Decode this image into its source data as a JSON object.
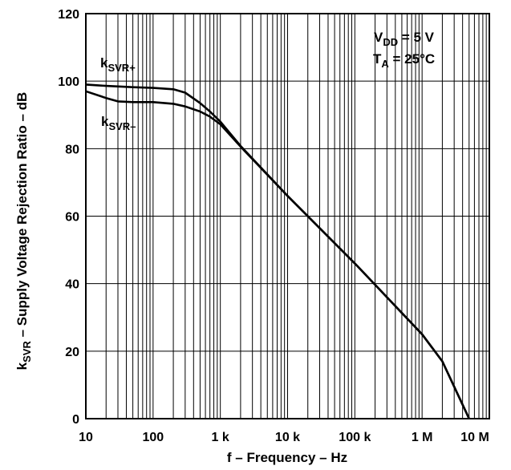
{
  "chart_data": {
    "type": "line",
    "xscale": "log",
    "xlim": [
      10,
      10000000
    ],
    "ylim": [
      0,
      120
    ],
    "grid": true,
    "xlabel": "f – Frequency – Hz",
    "ylabel": {
      "k": "k",
      "sub": "SVR",
      "rest": " – Supply Voltage Rejection Ratio – dB"
    },
    "x_ticks": [
      {
        "value": 10,
        "label": "10"
      },
      {
        "value": 100,
        "label": "100"
      },
      {
        "value": 1000,
        "label": "1 k"
      },
      {
        "value": 10000,
        "label": "10 k"
      },
      {
        "value": 100000,
        "label": "100 k"
      },
      {
        "value": 1000000,
        "label": "1 M"
      },
      {
        "value": 10000000,
        "label": "10 M"
      }
    ],
    "y_ticks": [
      {
        "value": 0,
        "label": "0"
      },
      {
        "value": 20,
        "label": "20"
      },
      {
        "value": 40,
        "label": "40"
      },
      {
        "value": 60,
        "label": "60"
      },
      {
        "value": 80,
        "label": "80"
      },
      {
        "value": 100,
        "label": "100"
      },
      {
        "value": 120,
        "label": "120"
      }
    ],
    "series": [
      {
        "name": "kSVR+",
        "label": {
          "k": "k",
          "sub": "SVR+"
        },
        "points": [
          [
            10,
            99
          ],
          [
            20,
            98.6
          ],
          [
            50,
            98.2
          ],
          [
            100,
            98
          ],
          [
            200,
            97.6
          ],
          [
            300,
            96.6
          ],
          [
            500,
            93.5
          ],
          [
            700,
            91
          ],
          [
            1000,
            88
          ],
          [
            2000,
            80.8
          ],
          [
            10000,
            66
          ],
          [
            100000,
            46
          ],
          [
            1000000,
            25
          ],
          [
            2000000,
            17
          ],
          [
            5000000,
            0
          ]
        ]
      },
      {
        "name": "kSVR-",
        "label": {
          "k": "k",
          "sub": "SVR–"
        },
        "points": [
          [
            10,
            97
          ],
          [
            20,
            95
          ],
          [
            30,
            94
          ],
          [
            50,
            93.8
          ],
          [
            100,
            93.8
          ],
          [
            200,
            93.3
          ],
          [
            300,
            92.5
          ],
          [
            500,
            91
          ],
          [
            700,
            89.5
          ],
          [
            1000,
            87.2
          ],
          [
            2000,
            80.6
          ],
          [
            10000,
            66
          ],
          [
            100000,
            46
          ],
          [
            1000000,
            25
          ],
          [
            2000000,
            17
          ],
          [
            5000000,
            0
          ]
        ]
      }
    ],
    "annotation": {
      "line1": {
        "main": "V",
        "sub": "DD",
        "rest": " = 5 V"
      },
      "line2": {
        "main": "T",
        "sub": "A",
        "rest": " = 25°C"
      }
    }
  }
}
